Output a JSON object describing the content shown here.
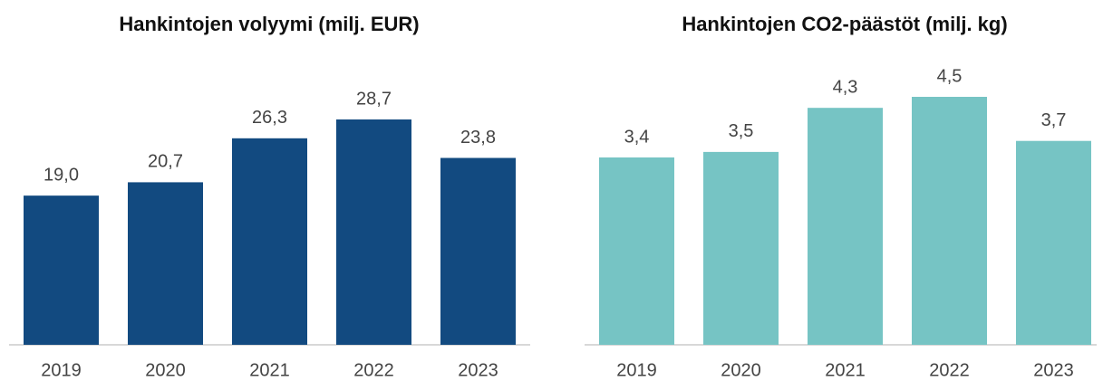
{
  "chart_data": [
    {
      "type": "bar",
      "title": "Hankintojen volyymi (milj. EUR)",
      "categories": [
        "2019",
        "2020",
        "2021",
        "2022",
        "2023"
      ],
      "values": [
        19.0,
        20.7,
        26.3,
        28.7,
        23.8
      ],
      "value_labels": [
        "19,0",
        "20,7",
        "26,3",
        "28,7",
        "23,8"
      ],
      "color": "#124a80"
    },
    {
      "type": "bar",
      "title": "Hankintojen CO2-päästöt (milj. kg)",
      "categories": [
        "2019",
        "2020",
        "2021",
        "2022",
        "2023"
      ],
      "values": [
        3.4,
        3.5,
        4.3,
        4.5,
        3.7
      ],
      "value_labels": [
        "3,4",
        "3,5",
        "4,3",
        "4,5",
        "3,7"
      ],
      "color": "#76c4c4"
    }
  ]
}
